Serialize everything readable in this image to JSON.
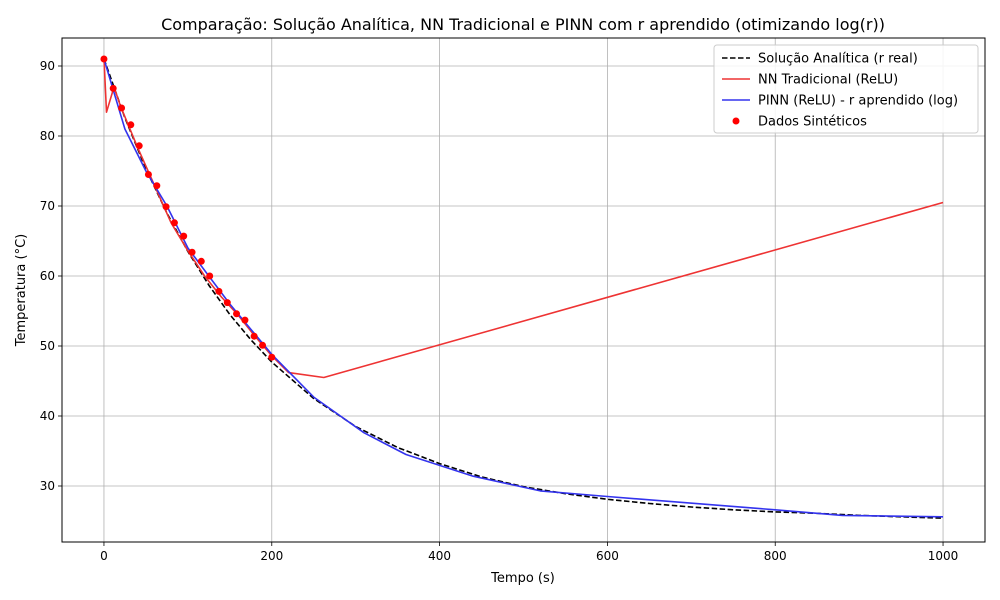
{
  "chart_data": {
    "type": "line",
    "title": "Comparação: Solução Analítica, NN Tradicional e PINN com r aprendido (otimizando log(r))",
    "xlabel": "Tempo (s)",
    "ylabel": "Temperatura (°C)",
    "xlim": [
      -50,
      1050
    ],
    "ylim": [
      22,
      94
    ],
    "xticks": [
      0,
      200,
      400,
      600,
      800,
      1000
    ],
    "yticks": [
      30,
      40,
      50,
      60,
      70,
      80,
      90
    ],
    "grid": true,
    "legend_position": "top-right",
    "series": [
      {
        "name": "Solução Analítica (r real)",
        "style": "dashed",
        "color": "#000000",
        "x": [
          0,
          25,
          50,
          75,
          100,
          125,
          150,
          175,
          200,
          250,
          300,
          350,
          400,
          450,
          500,
          550,
          600,
          650,
          700,
          750,
          800,
          850,
          900,
          950,
          1000
        ],
        "y": [
          91.0,
          82.6,
          75.3,
          69.0,
          63.5,
          58.7,
          54.5,
          50.9,
          47.7,
          42.5,
          38.5,
          35.5,
          33.2,
          31.3,
          29.9,
          28.9,
          28.1,
          27.5,
          27.0,
          26.6,
          26.3,
          26.1,
          25.8,
          25.6,
          25.4
        ]
      },
      {
        "name": "NN Tradicional (ReLU)",
        "style": "solid",
        "color": "#ee3333",
        "x": [
          0,
          3,
          12,
          20,
          40,
          60,
          80,
          100,
          120,
          140,
          160,
          180,
          200,
          220,
          262,
          1000
        ],
        "y": [
          91.0,
          83.4,
          87.0,
          84.2,
          78.4,
          73.0,
          67.6,
          63.6,
          60.0,
          57.0,
          54.4,
          51.4,
          48.6,
          46.2,
          45.5,
          70.5
        ]
      },
      {
        "name": "PINN (ReLU) - r aprendido (log)",
        "style": "solid",
        "color": "#3333ee",
        "x": [
          0,
          25,
          50,
          75,
          100,
          125,
          150,
          175,
          200,
          250,
          310,
          360,
          440,
          520,
          600,
          800,
          880,
          1000
        ],
        "y": [
          91.0,
          81.0,
          75.0,
          70.0,
          64.0,
          60.0,
          56.0,
          52.4,
          48.8,
          42.7,
          37.6,
          34.5,
          31.4,
          29.3,
          28.5,
          26.6,
          25.8,
          25.6
        ]
      }
    ],
    "scatter": {
      "name": "Dados Sintéticos",
      "color": "#ff0000",
      "x": [
        0,
        11,
        21,
        32,
        42,
        53,
        63,
        74,
        84,
        95,
        105,
        116,
        126,
        137,
        147,
        158,
        168,
        179,
        189,
        200
      ],
      "y": [
        91.0,
        86.8,
        84.0,
        81.6,
        78.6,
        74.5,
        72.9,
        69.9,
        67.6,
        65.7,
        63.4,
        62.1,
        60.0,
        57.8,
        56.2,
        54.6,
        53.7,
        51.4,
        50.1,
        48.4
      ]
    }
  }
}
